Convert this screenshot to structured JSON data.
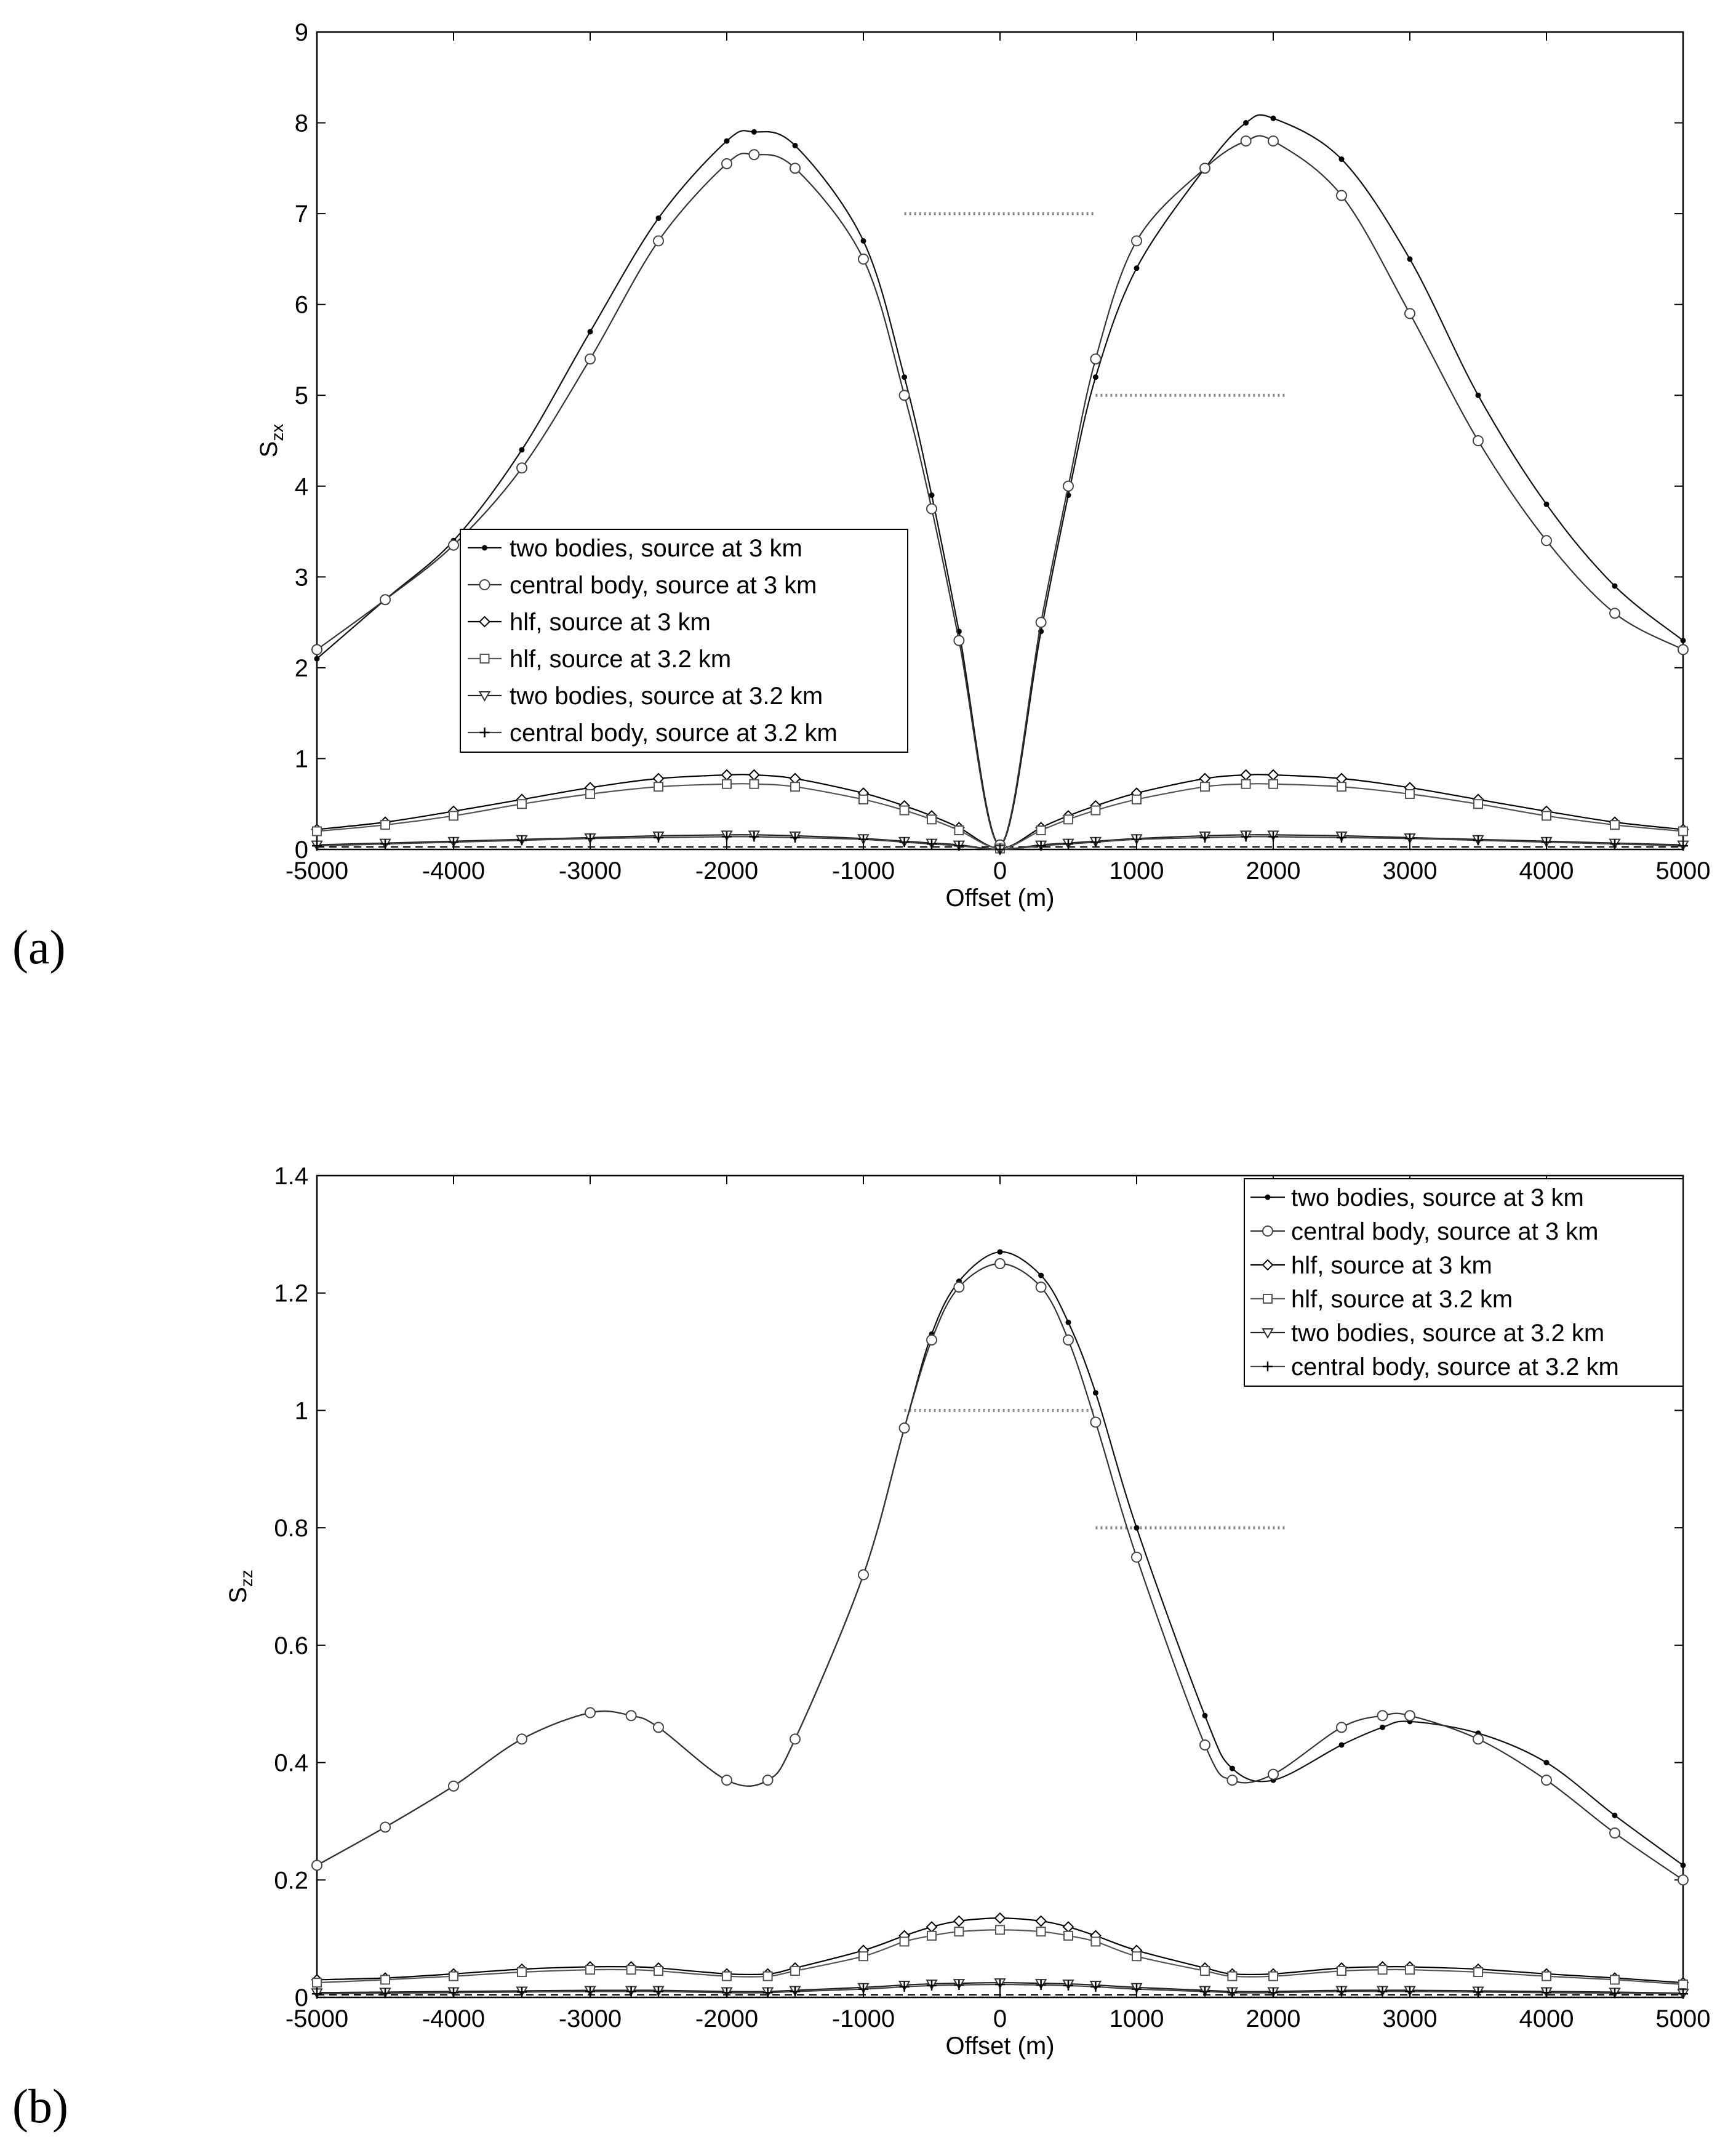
{
  "figure": {
    "panel_labels": [
      "(a)",
      "(b)"
    ]
  },
  "chart_data": [
    {
      "type": "line",
      "panel": "(a)",
      "xlabel": "Offset (m)",
      "ylabel": "S",
      "ylabel_subscript": "zx",
      "xlim": [
        -5000,
        5000
      ],
      "ylim": [
        0,
        9
      ],
      "xticks": [
        -5000,
        -4000,
        -3000,
        -2000,
        -1000,
        0,
        1000,
        2000,
        3000,
        4000,
        5000
      ],
      "yticks": [
        0,
        1,
        2,
        3,
        4,
        5,
        6,
        7,
        8,
        9
      ],
      "grid": false,
      "legend": {
        "position": "lower-left",
        "entries": [
          "two bodies, source at 3 km",
          "central body, source at 3 km",
          "hlf, source at 3 km",
          "hlf, source at 3.2 km",
          "two bodies, source at 3.2 km",
          "central body, source at 3.2 km"
        ]
      },
      "annotations": [
        {
          "type": "dotted-segment",
          "x": [
            -700,
            700
          ],
          "y": 7.0
        },
        {
          "type": "dotted-segment",
          "x": [
            700,
            2100
          ],
          "y": 5.0
        }
      ],
      "x": [
        -5000,
        -4500,
        -4000,
        -3500,
        -3000,
        -2500,
        -2000,
        -1800,
        -1500,
        -1000,
        -700,
        -500,
        -300,
        0,
        300,
        500,
        700,
        1000,
        1500,
        1800,
        2000,
        2500,
        3000,
        3500,
        4000,
        4500,
        5000
      ],
      "series": [
        {
          "name": "two bodies, source at 3 km",
          "marker": "dot",
          "values": [
            2.1,
            2.75,
            3.4,
            4.4,
            5.7,
            6.95,
            7.8,
            7.9,
            7.75,
            6.7,
            5.2,
            3.9,
            2.4,
            0.05,
            2.4,
            3.9,
            5.2,
            6.4,
            7.5,
            8.0,
            8.05,
            7.6,
            6.5,
            5.0,
            3.8,
            2.9,
            2.3
          ]
        },
        {
          "name": "central body, source at 3 km",
          "marker": "circle",
          "values": [
            2.2,
            2.75,
            3.35,
            4.2,
            5.4,
            6.7,
            7.55,
            7.65,
            7.5,
            6.5,
            5.0,
            3.75,
            2.3,
            0.05,
            2.5,
            4.0,
            5.4,
            6.7,
            7.5,
            7.8,
            7.8,
            7.2,
            5.9,
            4.5,
            3.4,
            2.6,
            2.2
          ]
        },
        {
          "name": "hlf, source at 3 km",
          "marker": "diamond",
          "values": [
            0.22,
            0.3,
            0.42,
            0.55,
            0.68,
            0.78,
            0.82,
            0.82,
            0.78,
            0.62,
            0.48,
            0.37,
            0.24,
            0.01,
            0.24,
            0.37,
            0.48,
            0.62,
            0.78,
            0.82,
            0.82,
            0.78,
            0.68,
            0.55,
            0.42,
            0.3,
            0.22
          ]
        },
        {
          "name": "hlf, source at 3.2 km",
          "marker": "square",
          "values": [
            0.2,
            0.27,
            0.37,
            0.5,
            0.61,
            0.69,
            0.72,
            0.72,
            0.69,
            0.55,
            0.43,
            0.33,
            0.21,
            0.01,
            0.21,
            0.33,
            0.43,
            0.55,
            0.69,
            0.72,
            0.72,
            0.69,
            0.61,
            0.5,
            0.37,
            0.27,
            0.2
          ]
        },
        {
          "name": "two bodies, source at 3.2 km",
          "marker": "triangle-down",
          "values": [
            0.05,
            0.07,
            0.09,
            0.11,
            0.13,
            0.15,
            0.16,
            0.16,
            0.15,
            0.12,
            0.09,
            0.07,
            0.05,
            0.0,
            0.05,
            0.07,
            0.09,
            0.12,
            0.15,
            0.16,
            0.16,
            0.15,
            0.13,
            0.11,
            0.09,
            0.07,
            0.05
          ]
        },
        {
          "name": "central body, source at 3.2 km",
          "marker": "plus",
          "values": [
            0.04,
            0.06,
            0.08,
            0.1,
            0.12,
            0.13,
            0.14,
            0.14,
            0.13,
            0.11,
            0.08,
            0.06,
            0.04,
            0.0,
            0.04,
            0.06,
            0.08,
            0.11,
            0.13,
            0.14,
            0.14,
            0.13,
            0.12,
            0.1,
            0.08,
            0.06,
            0.04
          ]
        }
      ]
    },
    {
      "type": "line",
      "panel": "(b)",
      "xlabel": "Offset (m)",
      "ylabel": "S",
      "ylabel_subscript": "zz",
      "xlim": [
        -5000,
        5000
      ],
      "ylim": [
        0,
        1.4
      ],
      "xticks": [
        -5000,
        -4000,
        -3000,
        -2000,
        -1000,
        0,
        1000,
        2000,
        3000,
        4000,
        5000
      ],
      "yticks": [
        0,
        0.2,
        0.4,
        0.6,
        0.8,
        1,
        1.2,
        1.4
      ],
      "grid": false,
      "legend": {
        "position": "top-right",
        "entries": [
          "two bodies, source at 3 km",
          "central body, source at 3 km",
          "hlf, source at 3 km",
          "hlf, source at 3.2 km",
          "two bodies, source at 3.2 km",
          "central body, source at 3.2 km"
        ]
      },
      "annotations": [
        {
          "type": "dotted-segment",
          "x": [
            -700,
            700
          ],
          "y": 1.0
        },
        {
          "type": "dotted-segment",
          "x": [
            700,
            2100
          ],
          "y": 0.8
        }
      ],
      "x": [
        -5000,
        -4500,
        -4000,
        -3500,
        -3000,
        -2700,
        -2500,
        -2000,
        -1700,
        -1500,
        -1000,
        -700,
        -500,
        -300,
        0,
        300,
        500,
        700,
        1000,
        1500,
        1700,
        2000,
        2500,
        2800,
        3000,
        3500,
        4000,
        4500,
        5000
      ],
      "series": [
        {
          "name": "two bodies, source at 3 km",
          "marker": "dot",
          "values": [
            0.225,
            0.29,
            0.36,
            0.44,
            0.485,
            0.48,
            0.46,
            0.37,
            0.37,
            0.44,
            0.72,
            0.97,
            1.13,
            1.22,
            1.27,
            1.23,
            1.15,
            1.03,
            0.8,
            0.48,
            0.39,
            0.37,
            0.43,
            0.46,
            0.47,
            0.45,
            0.4,
            0.31,
            0.225
          ]
        },
        {
          "name": "central body, source at 3 km",
          "marker": "circle",
          "values": [
            0.225,
            0.29,
            0.36,
            0.44,
            0.485,
            0.48,
            0.46,
            0.37,
            0.37,
            0.44,
            0.72,
            0.97,
            1.12,
            1.21,
            1.25,
            1.21,
            1.12,
            0.98,
            0.75,
            0.43,
            0.37,
            0.38,
            0.46,
            0.48,
            0.48,
            0.44,
            0.37,
            0.28,
            0.2
          ]
        },
        {
          "name": "hlf, source at 3 km",
          "marker": "diamond",
          "values": [
            0.03,
            0.033,
            0.04,
            0.048,
            0.052,
            0.052,
            0.05,
            0.04,
            0.04,
            0.05,
            0.08,
            0.105,
            0.12,
            0.13,
            0.135,
            0.13,
            0.12,
            0.105,
            0.08,
            0.05,
            0.04,
            0.04,
            0.05,
            0.052,
            0.052,
            0.048,
            0.04,
            0.033,
            0.025
          ]
        },
        {
          "name": "hlf, source at 3.2 km",
          "marker": "square",
          "values": [
            0.025,
            0.03,
            0.036,
            0.043,
            0.047,
            0.047,
            0.045,
            0.036,
            0.036,
            0.045,
            0.07,
            0.095,
            0.105,
            0.112,
            0.115,
            0.112,
            0.105,
            0.095,
            0.07,
            0.045,
            0.036,
            0.036,
            0.045,
            0.047,
            0.047,
            0.043,
            0.036,
            0.03,
            0.022
          ]
        },
        {
          "name": "two bodies, source at 3.2 km",
          "marker": "triangle-down",
          "values": [
            0.008,
            0.009,
            0.01,
            0.011,
            0.012,
            0.012,
            0.012,
            0.01,
            0.01,
            0.012,
            0.017,
            0.021,
            0.023,
            0.024,
            0.025,
            0.024,
            0.023,
            0.021,
            0.017,
            0.012,
            0.01,
            0.01,
            0.012,
            0.012,
            0.012,
            0.011,
            0.01,
            0.009,
            0.007
          ]
        },
        {
          "name": "central body, source at 3.2 km",
          "marker": "plus",
          "values": [
            0.006,
            0.007,
            0.008,
            0.009,
            0.01,
            0.01,
            0.01,
            0.008,
            0.008,
            0.01,
            0.014,
            0.018,
            0.02,
            0.021,
            0.022,
            0.021,
            0.02,
            0.018,
            0.014,
            0.01,
            0.008,
            0.008,
            0.01,
            0.01,
            0.01,
            0.009,
            0.008,
            0.007,
            0.006
          ]
        }
      ]
    }
  ]
}
